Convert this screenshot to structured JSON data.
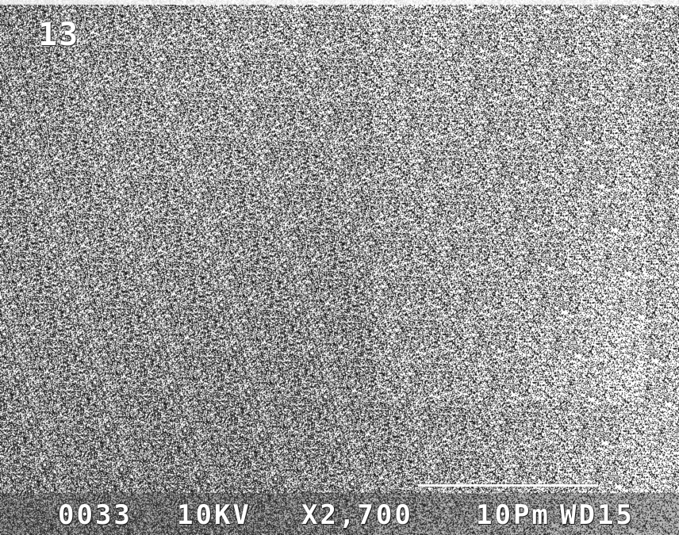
{
  "micrograph": {
    "panel_label": "13",
    "info_bar": {
      "image_number": "0033",
      "accelerating_voltage": "10KV",
      "magnification": "X2,700",
      "scale_label": "10Pm",
      "working_distance": "WD15"
    },
    "colors": {
      "text": "#ffffff",
      "background_mid": "#7a7a7a"
    }
  }
}
